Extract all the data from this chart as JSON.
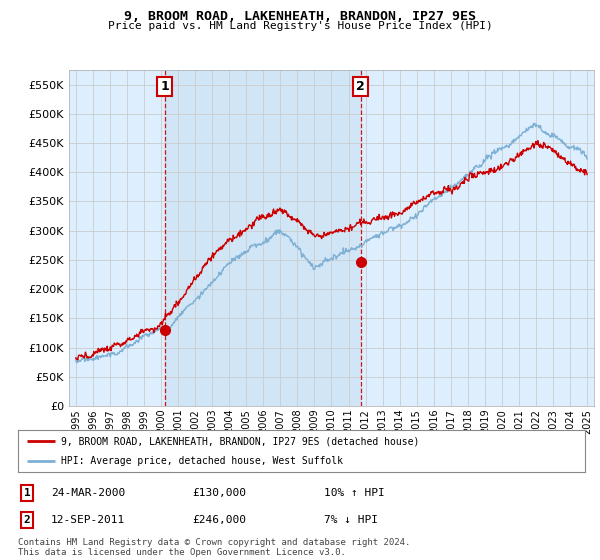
{
  "title": "9, BROOM ROAD, LAKENHEATH, BRANDON, IP27 9ES",
  "subtitle": "Price paid vs. HM Land Registry's House Price Index (HPI)",
  "legend_line1": "9, BROOM ROAD, LAKENHEATH, BRANDON, IP27 9ES (detached house)",
  "legend_line2": "HPI: Average price, detached house, West Suffolk",
  "annotation1_label": "1",
  "annotation1_date": "24-MAR-2000",
  "annotation1_price": "£130,000",
  "annotation1_hpi": "10% ↑ HPI",
  "annotation2_label": "2",
  "annotation2_date": "12-SEP-2011",
  "annotation2_price": "£246,000",
  "annotation2_hpi": "7% ↓ HPI",
  "footnote": "Contains HM Land Registry data © Crown copyright and database right 2024.\nThis data is licensed under the Open Government Licence v3.0.",
  "red_color": "#cc0000",
  "blue_color": "#7eb0d4",
  "vline_color": "#cc0000",
  "grid_color": "#cccccc",
  "bg_color": "#ffffff",
  "plot_bg_color": "#ddeeff",
  "ylim": [
    0,
    575000
  ],
  "yticks": [
    0,
    50000,
    100000,
    150000,
    200000,
    250000,
    300000,
    350000,
    400000,
    450000,
    500000,
    550000
  ],
  "year_start": 1995,
  "year_end": 2025,
  "sale1_year": 2000.22,
  "sale1_price": 130000,
  "sale2_year": 2011.71,
  "sale2_price": 246000
}
